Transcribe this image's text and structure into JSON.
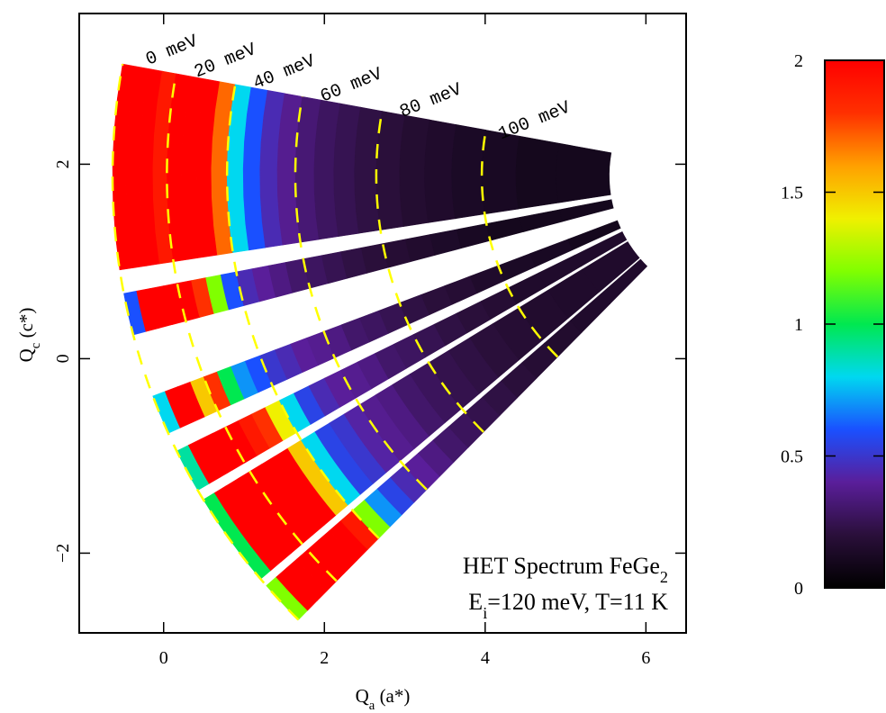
{
  "chart_data": {
    "type": "heatmap",
    "xlabel": [
      "Q",
      "a",
      " (a*)"
    ],
    "ylabel": [
      "Q",
      "c",
      " (c*)"
    ],
    "xlim": [
      -1.05,
      6.5
    ],
    "ylim": [
      -2.82,
      3.55
    ],
    "xticks": [
      0,
      2,
      4,
      6
    ],
    "yticks": [
      {
        "value": -2,
        "label": "−2"
      },
      0,
      2
    ],
    "annotations": [
      [
        "HET Spectrum FeGe",
        "2"
      ],
      [
        "E",
        "i",
        "=120 meV, T=11 K"
      ]
    ],
    "incident_energy": 120,
    "energy_lines": [
      {
        "value": 0,
        "label": "0 meV"
      },
      {
        "value": 20,
        "label": "20 meV"
      },
      {
        "value": 40,
        "label": "40 meV"
      },
      {
        "value": 60,
        "label": "60 meV"
      },
      {
        "value": 80,
        "label": "80 meV"
      },
      {
        "value": 100,
        "label": "100 meV"
      }
    ],
    "energy_line_color": "#ffff00",
    "energy_bins": [
      0,
      5,
      10,
      15,
      20,
      25,
      30,
      35,
      40,
      45,
      50,
      55,
      60,
      65,
      70,
      75,
      80,
      85,
      90,
      95,
      100,
      105,
      110,
      115
    ],
    "banks": [
      {
        "values": [
          2,
          2,
          2,
          1.9,
          2,
          2,
          2,
          1.7,
          0.8,
          0.6,
          0.45,
          0.38,
          0.32,
          0.28,
          0.25,
          0.22,
          0.2,
          0.17,
          0.15,
          0.13,
          0.12,
          0.1,
          0.1
        ]
      },
      {
        "values": [
          0.6,
          2,
          2,
          2,
          2,
          1.8,
          1.2,
          0.6,
          0.45,
          0.4,
          0.35,
          0.3,
          0.28,
          0.25,
          0.22,
          0.2,
          0.18,
          0.16,
          0.14,
          0.12,
          0.1,
          0.1,
          0.1
        ]
      },
      {
        "values": [
          0.8,
          2,
          2,
          1.5,
          1.8,
          1.0,
          0.7,
          0.6,
          0.5,
          0.45,
          0.4,
          0.38,
          0.35,
          0.3,
          0.28,
          0.25,
          0.22,
          0.2,
          0.18,
          0.15,
          0.13,
          0.12,
          0.1
        ]
      },
      {
        "values": [
          0.9,
          2,
          2,
          2,
          2,
          1.9,
          1.8,
          1.4,
          0.8,
          0.55,
          0.45,
          0.4,
          0.38,
          0.35,
          0.3,
          0.28,
          0.25,
          0.22,
          0.2,
          0.18,
          0.15,
          0.15,
          0.15
        ]
      },
      {
        "values": [
          1.0,
          2,
          2,
          2,
          2,
          2,
          2,
          1.5,
          0.8,
          0.55,
          0.5,
          0.42,
          0.38,
          0.35,
          0.3,
          0.27,
          0.24,
          0.22,
          0.2,
          0.18,
          0.16,
          0.15,
          0.15
        ]
      },
      {
        "values": [
          1.2,
          2,
          2,
          2,
          2,
          2,
          2,
          1.9,
          1.2,
          0.7,
          0.55,
          0.45,
          0.4,
          0.35,
          0.3,
          0.27,
          0.24,
          0.22,
          0.2,
          0.18,
          0.16,
          0.15,
          0.15
        ]
      }
    ],
    "colorbar": {
      "lim": [
        0,
        2
      ],
      "ticks": [
        0,
        0.5,
        1,
        1.5,
        2
      ],
      "colors": [
        "#000000",
        "#2a0f3a",
        "#5a1e9a",
        "#1a50ff",
        "#00d8f0",
        "#00e850",
        "#80ff00",
        "#f0f000",
        "#ffa000",
        "#ff3000",
        "#ff0000"
      ]
    }
  }
}
